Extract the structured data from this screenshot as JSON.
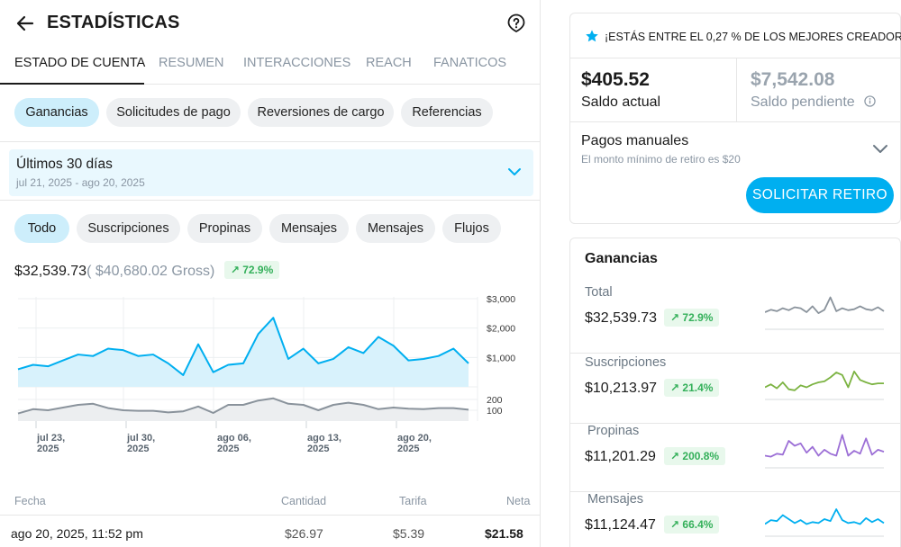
{
  "header": {
    "title": "ESTADÍSTICAS",
    "back_icon": "arrow-left-icon",
    "help_icon": "question-icon"
  },
  "tabs": [
    {
      "label": "ESTADO DE CUENTA",
      "active": true
    },
    {
      "label": "RESUMEN",
      "active": false
    },
    {
      "label": "INTERACCIONES",
      "active": false
    },
    {
      "label": "REACH",
      "active": false
    },
    {
      "label": "FANATICOS",
      "active": false
    }
  ],
  "category_pills": [
    {
      "label": "Ganancias",
      "active": true
    },
    {
      "label": "Solicitudes de pago",
      "active": false
    },
    {
      "label": "Reversiones de cargo",
      "active": false
    },
    {
      "label": "Referencias",
      "active": false
    }
  ],
  "date_range": {
    "title": "Últimos 30 días",
    "range": "jul 21, 2025 - ago 20, 2025"
  },
  "type_pills": [
    {
      "label": "Todo",
      "active": true
    },
    {
      "label": "Suscripciones",
      "active": false
    },
    {
      "label": "Propinas",
      "active": false
    },
    {
      "label": "Mensajes",
      "active": false
    },
    {
      "label": "Mensajes",
      "active": false
    },
    {
      "label": "Flujos",
      "active": false
    }
  ],
  "totals": {
    "net": "$32,539.73",
    "gross": "( $40,680.02 Gross)",
    "change": "72.9%"
  },
  "colors": {
    "accent": "#00aff0",
    "fill": "#d8f2fc",
    "gray_line": "#8a939c",
    "green": "#34b05a"
  },
  "chart_data": [
    {
      "type": "area",
      "x_ticks": [
        [
          "jul 23,",
          "2025"
        ],
        [
          "jul 30,",
          "2025"
        ],
        [
          "ago 06,",
          "2025"
        ],
        [
          "ago 13,",
          "2025"
        ],
        [
          "ago 20,",
          "2025"
        ]
      ],
      "y_ticks": [
        "$3,000",
        "$2,000",
        "$1,000"
      ],
      "ylim": [
        0,
        3000
      ],
      "series": [
        {
          "values": [
            600,
            750,
            700,
            900,
            1100,
            1050,
            1300,
            1250,
            1050,
            1100,
            800,
            400,
            1450,
            500,
            750,
            800,
            1800,
            2350,
            950,
            1300,
            800,
            950,
            1350,
            1150,
            1700,
            1400,
            900,
            950,
            1050,
            1300,
            800
          ]
        }
      ]
    },
    {
      "type": "area",
      "y_ticks": [
        "200",
        "100"
      ],
      "ylim": [
        0,
        300
      ],
      "series": [
        {
          "values": [
            70,
            110,
            100,
            125,
            150,
            160,
            120,
            100,
            95,
            95,
            80,
            90,
            135,
            75,
            150,
            150,
            190,
            210,
            160,
            150,
            100,
            150,
            170,
            150,
            110,
            125,
            115,
            110,
            120,
            120,
            105
          ]
        }
      ]
    }
  ],
  "table": {
    "headers": {
      "date": "Fecha",
      "amount": "Cantidad",
      "fee": "Tarifa",
      "net": "Neta"
    },
    "rows": [
      {
        "date": "ago 20, 2025, 11:52 pm",
        "amount": "$26.97",
        "fee": "$5.39",
        "net": "$21.58"
      }
    ]
  },
  "creator_banner": {
    "icon": "star-icon",
    "text": "¡ESTÁS ENTRE EL 0,27 % DE LOS MEJORES CREADORES!"
  },
  "balances": {
    "current": {
      "amount": "$405.52",
      "label": "Saldo actual"
    },
    "pending": {
      "amount": "$7,542.08",
      "label": "Saldo pendiente"
    }
  },
  "payouts": {
    "title": "Pagos manuales",
    "subtitle": "El monto mínimo de retiro es $20",
    "button": "SOLICITAR RETIRO"
  },
  "earnings": {
    "title": "Ganancias",
    "items": [
      {
        "label": "Total",
        "value": "$32,539.73",
        "change": "72.9%",
        "color": "#8a939c",
        "spark": [
          40,
          45,
          42,
          48,
          44,
          50,
          48,
          40,
          52,
          38,
          45,
          70,
          42,
          48,
          44,
          46,
          52,
          46,
          44,
          50,
          42
        ]
      },
      {
        "label": "Suscripciones",
        "value": "$10,213.97",
        "change": "21.4%",
        "color": "#7cb342",
        "spark": [
          30,
          36,
          28,
          40,
          26,
          24,
          34,
          30,
          36,
          40,
          42,
          50,
          60,
          55,
          30,
          62,
          45,
          40,
          36,
          38,
          38
        ]
      },
      {
        "label": "Propinas",
        "value": "$11,201.29",
        "change": "200.8%",
        "color": "#9c6fd6",
        "spark": [
          30,
          28,
          34,
          32,
          60,
          50,
          55,
          36,
          48,
          30,
          42,
          34,
          30,
          72,
          30,
          40,
          34,
          65,
          32,
          42,
          38
        ]
      },
      {
        "label": "Mensajes",
        "value": "$11,124.47",
        "change": "66.4%",
        "color": "#00aff0",
        "spark": [
          30,
          38,
          36,
          48,
          40,
          32,
          38,
          30,
          34,
          32,
          40,
          36,
          60,
          38,
          32,
          34,
          30,
          42,
          34,
          40,
          32
        ]
      }
    ]
  }
}
